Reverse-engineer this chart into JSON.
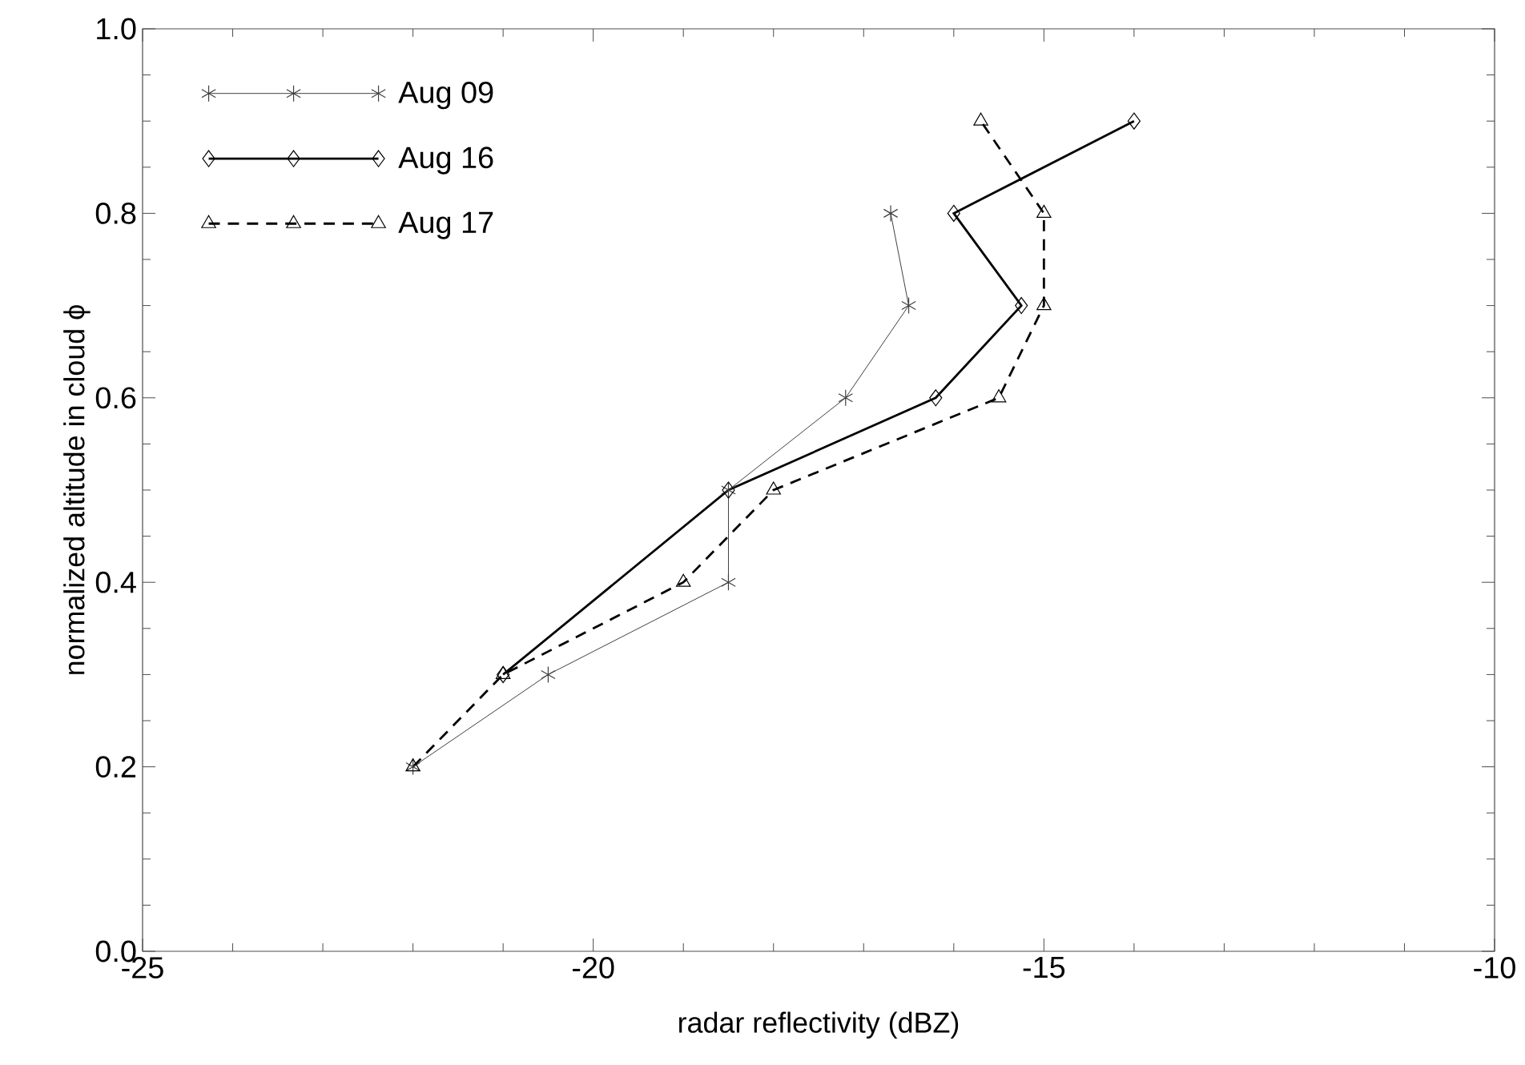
{
  "chart_data": {
    "type": "line",
    "xlabel": "radar reflectivity (dBZ)",
    "ylabel": "normalized altitude in cloud ϕ",
    "xlim": [
      -25,
      -10
    ],
    "ylim": [
      0,
      1
    ],
    "xticks": [
      -25,
      -20,
      -15,
      -10
    ],
    "yticks": [
      {
        "value": 0,
        "label": "0.0"
      },
      {
        "value": 0.2,
        "label": "0.2"
      },
      {
        "value": 0.4,
        "label": "0.4"
      },
      {
        "value": 0.6,
        "label": "0.6"
      },
      {
        "value": 0.8,
        "label": "0.8"
      },
      {
        "value": 1,
        "label": "1.0"
      }
    ],
    "grid": false,
    "legend": "top left",
    "series": [
      {
        "name": "Aug 09",
        "color": "#404040",
        "marker": "cross",
        "line_style": "solid",
        "x": [
          -22,
          -20.5,
          -18.5,
          -18.5,
          -17.2,
          -16.5,
          -16.7
        ],
        "values": [
          0.2,
          0.3,
          0.4,
          0.5,
          0.6,
          0.7,
          0.8
        ]
      },
      {
        "name": "Aug 16",
        "color": "#000000",
        "marker": "diamond",
        "line_style": "solid",
        "x": [
          -21,
          -18.5,
          -16.2,
          -15.25,
          -16,
          -14
        ],
        "values": [
          0.3,
          0.5,
          0.6,
          0.7,
          0.8,
          0.9
        ]
      },
      {
        "name": "Aug 17",
        "color": "#000000",
        "marker": "triangle",
        "line_style": "dashed",
        "x": [
          -22,
          -21,
          -19,
          -18,
          -15.5,
          -15,
          -15,
          -15.7
        ],
        "values": [
          0.2,
          0.3,
          0.4,
          0.5,
          0.6,
          0.7,
          0.8,
          0.9
        ]
      }
    ]
  }
}
